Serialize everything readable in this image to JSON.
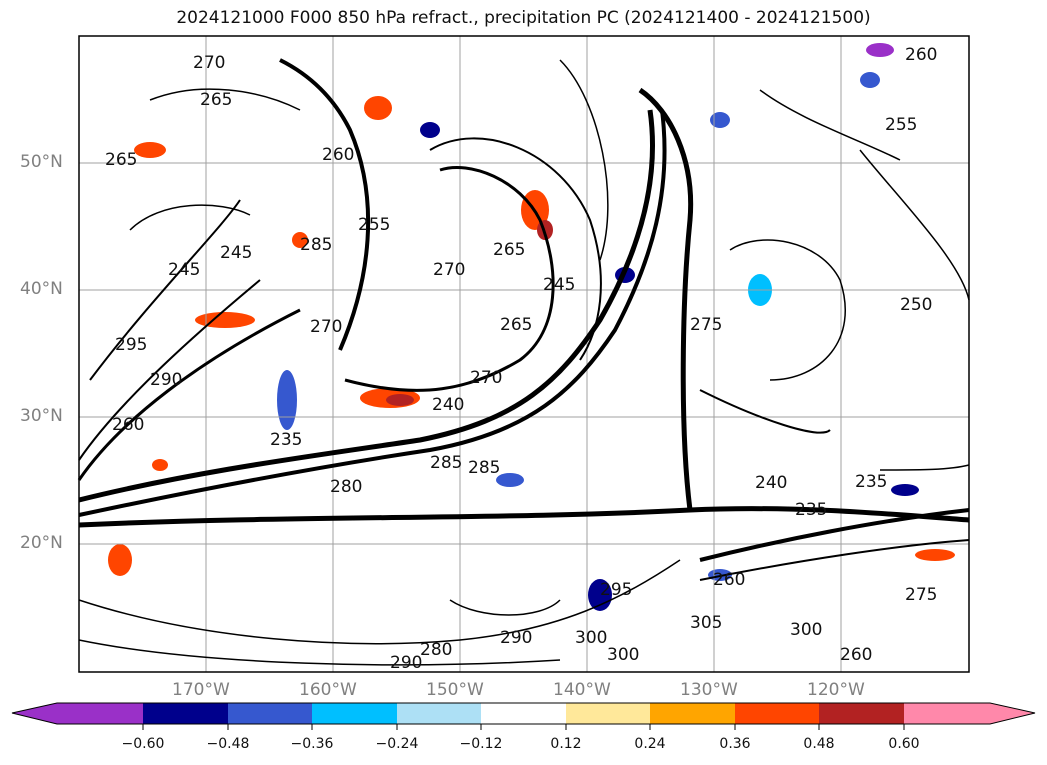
{
  "title": "2024121000 F000 850 hPa refract., precipitation PC (2024121400 - 2024121500)",
  "lat_labels": [
    "50°N",
    "40°N",
    "30°N",
    "20°N"
  ],
  "lon_labels": [
    "170°W",
    "160°W",
    "150°W",
    "140°W",
    "130°W",
    "120°W"
  ],
  "contour_labels": [
    "270",
    "265",
    "265",
    "260",
    "255",
    "245",
    "245",
    "270",
    "265",
    "265",
    "245",
    "285",
    "270",
    "295",
    "290",
    "260",
    "235",
    "240",
    "270",
    "275",
    "285",
    "285",
    "280",
    "295",
    "300",
    "290",
    "280",
    "290",
    "305",
    "300",
    "300",
    "260",
    "240",
    "235",
    "235",
    "275",
    "250",
    "260",
    "255",
    "260"
  ],
  "colorbar": {
    "tick_labels": [
      "−0.60",
      "−0.48",
      "−0.36",
      "−0.24",
      "−0.12",
      "0.12",
      "0.24",
      "0.36",
      "0.48",
      "0.60"
    ],
    "colors": [
      "#9a30c8",
      "#00008c",
      "#3658cf",
      "#00bfff",
      "#ade0f5",
      "#ffffff",
      "#ffe89a",
      "#ffa500",
      "#ff4500",
      "#b22222",
      "#ff88aa"
    ]
  }
}
